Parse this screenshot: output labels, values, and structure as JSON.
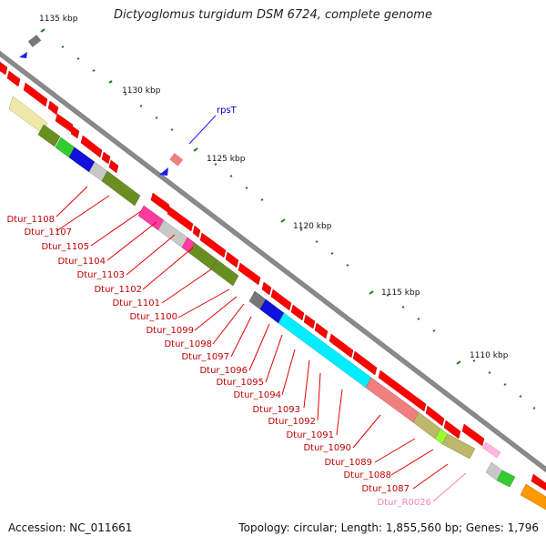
{
  "title": "Dictyoglomus turgidum DSM 6724, complete genome",
  "footer": {
    "accession": "Accession: NC_011661",
    "summary": "Topology: circular; Length: 1,855,560 bp; Genes: 1,796"
  },
  "scale_labels": [
    "1135 kbp",
    "1130 kbp",
    "1125 kbp",
    "1120 kbp",
    "1115 kbp",
    "1110 kbp"
  ],
  "callout_label": "rpsT",
  "gene_labels": [
    "Dtur_1108",
    "Dtur_1107",
    "Dtur_1105",
    "Dtur_1104",
    "Dtur_1103",
    "Dtur_1102",
    "Dtur_1101",
    "Dtur_1100",
    "Dtur_1099",
    "Dtur_1098",
    "Dtur_1097",
    "Dtur_1096",
    "Dtur_1095",
    "Dtur_1094",
    "Dtur_1093",
    "Dtur_1092",
    "Dtur_1091",
    "Dtur_1090",
    "Dtur_1089",
    "Dtur_1088",
    "Dtur_1087",
    "Dtur_R0026"
  ],
  "colors": {
    "backbone": "#808080",
    "forward_gene": "#ff0000",
    "label_line": "#e00000",
    "label_text": "#c00000",
    "rna_label": "#ee88bb",
    "tick": "#1a7a1a",
    "rpsT": "#0000cc"
  }
}
